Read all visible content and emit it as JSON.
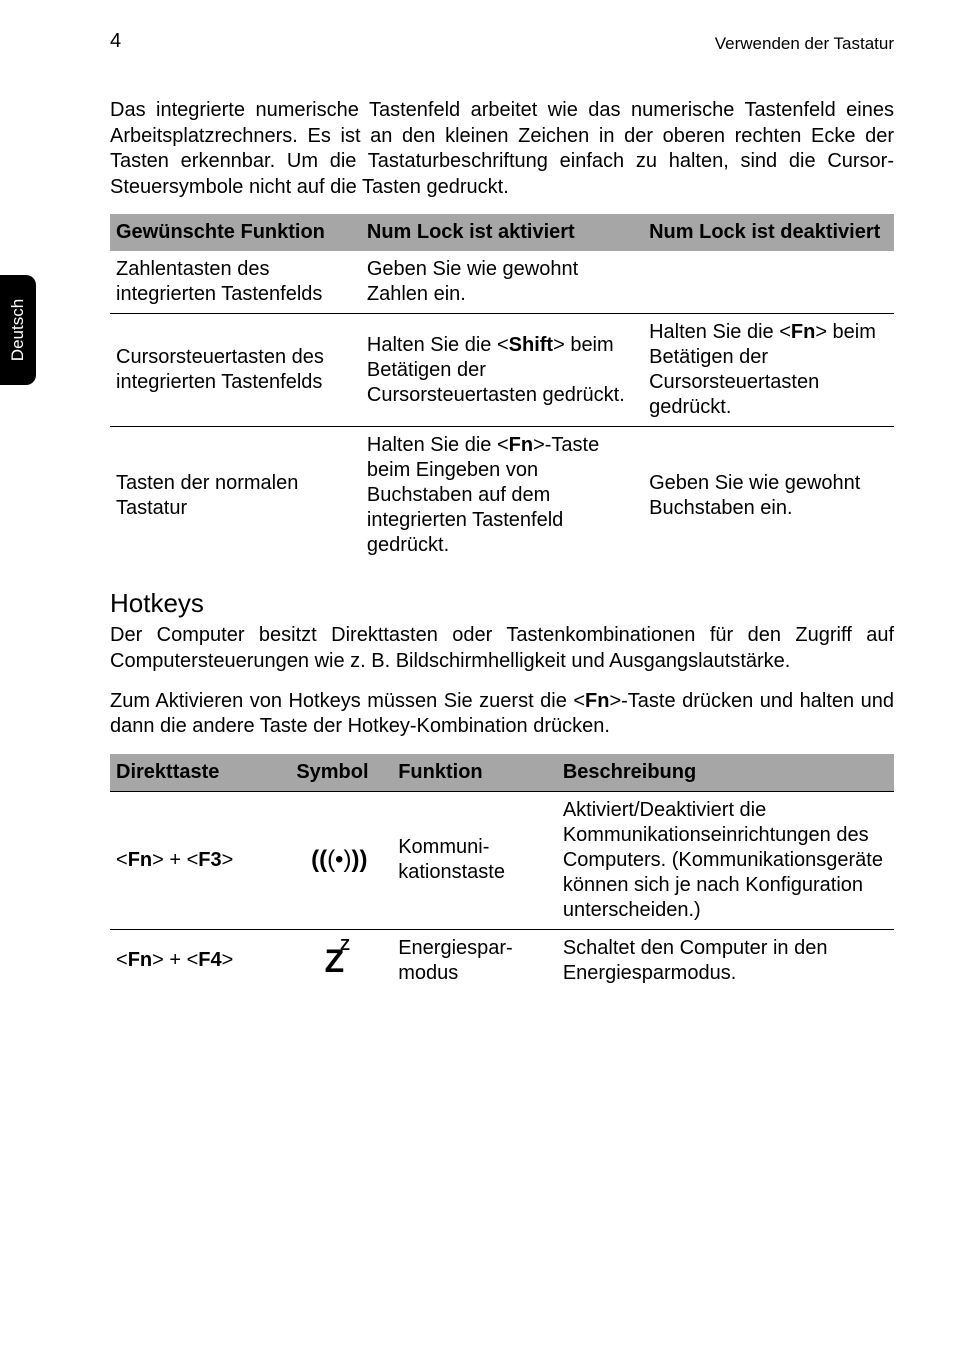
{
  "page_number": "4",
  "header_right": "Verwenden der Tastatur",
  "side_tab": "Deutsch",
  "intro_para": "Das integrierte numerische Tastenfeld arbeitet wie das numerische Tastenfeld eines Arbeitsplatzrechners. Es ist an den kleinen Zeichen in der oberen rechten Ecke der Tasten erkennbar. Um die Tastaturbeschriftung einfach zu halten, sind die Cursor-Steuersymbole nicht auf die Tasten gedruckt.",
  "table1": {
    "headers": {
      "c1": "Gewünschte Funktion",
      "c2": "Num Lock ist aktiviert",
      "c3": "Num Lock ist deaktiviert"
    },
    "rows": [
      {
        "c1": "Zahlentasten des integrierten Tastenfelds",
        "c2": "Geben Sie wie gewohnt Zahlen ein.",
        "c3": ""
      },
      {
        "c1": "Cursorsteuertasten des integrierten Tastenfelds",
        "c2_pre": "Halten Sie die <",
        "c2_key": "Shift",
        "c2_post": "> beim Betätigen der Cursorsteuertasten gedrückt.",
        "c3_pre": "Halten Sie die <",
        "c3_key": "Fn",
        "c3_post": "> beim Betätigen der Cursorsteuertasten gedrückt."
      },
      {
        "c1": "Tasten der normalen Tastatur",
        "c2_pre": "Halten Sie die <",
        "c2_key": "Fn",
        "c2_post": ">-Taste beim Eingeben von Buchstaben auf dem integrierten Tastenfeld gedrückt.",
        "c3": "Geben Sie wie gewohnt Buchstaben ein."
      }
    ]
  },
  "hotkeys_heading": "Hotkeys",
  "hotkeys_para1": "Der Computer besitzt Direkttasten oder Tastenkombinationen für den Zugriff auf Computersteuerungen wie z. B. Bildschirmhelligkeit und Ausgangslautstärke.",
  "hotkeys_para2_pre": "Zum Aktivieren von Hotkeys müssen Sie zuerst die <",
  "hotkeys_para2_key": "Fn",
  "hotkeys_para2_post": ">-Taste drücken und halten und dann die andere Taste der Hotkey-Kombination drücken.",
  "table2": {
    "headers": {
      "c1": "Direkttaste",
      "c2": "Symbol",
      "c3": "Funktion",
      "c4": "Beschreibung"
    },
    "rows": [
      {
        "c1_pre": "<",
        "c1_k1": "Fn",
        "c1_mid": "> + <",
        "c1_k2": "F3",
        "c1_post": ">",
        "symbol_kind": "wifi",
        "c3": "Kommuni-kationstaste",
        "c4": "Aktiviert/Deaktiviert die Kommunikationseinrichtungen des Computers. (Kommunikationsgeräte können sich je nach Konfiguration unterscheiden.)"
      },
      {
        "c1_pre": "<",
        "c1_k1": "Fn",
        "c1_mid": "> + <",
        "c1_k2": "F4",
        "c1_post": ">",
        "symbol_kind": "sleep",
        "c3": "Energiespar-modus",
        "c4": "Schaltet den Computer in den Energiesparmodus."
      }
    ]
  },
  "icons": {
    "wifi_glyph_outer": "((",
    "wifi_glyph_center": "(•)",
    "wifi_glyph_outer2": "))",
    "sleep_Z": "Z",
    "sleep_z": "Z"
  },
  "table1_col_widths": [
    "32%",
    "36%",
    "32%"
  ],
  "table2_col_widths": [
    "23%",
    "13%",
    "21%",
    "43%"
  ],
  "colors": {
    "header_bg": "#a6a6a6",
    "text": "#000000",
    "bg": "#ffffff",
    "sidetab_bg": "#000000",
    "sidetab_fg": "#ffffff"
  }
}
